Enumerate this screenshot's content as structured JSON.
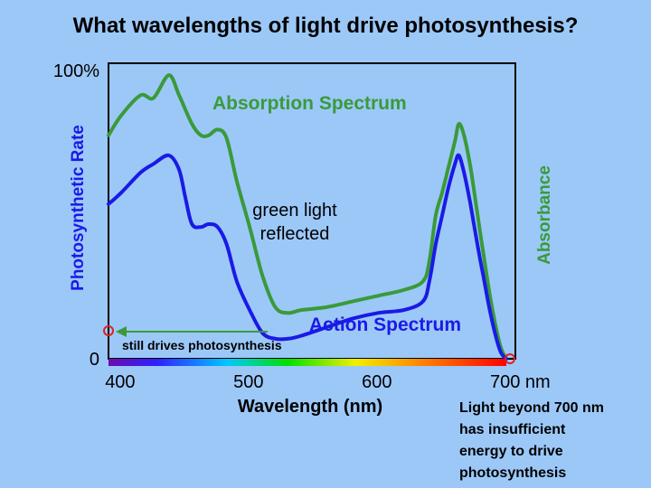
{
  "chart_data": {
    "type": "line",
    "title": "What wavelengths of light drive photosynthesis?",
    "xlabel": "Wavelength (nm)",
    "ylabel_left": "Photosynthetic Rate",
    "ylabel_right": "Absorbance",
    "x_ticks": [
      "400",
      "500",
      "600",
      "700 nm"
    ],
    "x_tick_values": [
      400,
      500,
      600,
      700
    ],
    "y_ticks": [
      "0",
      "100%"
    ],
    "y_tick_values": [
      0,
      100
    ],
    "xlim": [
      390,
      700
    ],
    "ylim": [
      0,
      100
    ],
    "grid": false,
    "series": [
      {
        "name": "Absorption Spectrum",
        "color": "#3a9a3a",
        "x": [
          390,
          400,
          415,
          425,
          437,
          445,
          455,
          462,
          468,
          475,
          482,
          490,
          500,
          510,
          520,
          530,
          540,
          560,
          580,
          600,
          620,
          635,
          640,
          645,
          650,
          655,
          660,
          663,
          667,
          672,
          677,
          682,
          688,
          695,
          700
        ],
        "y": [
          78,
          85,
          92,
          91,
          99,
          92,
          82,
          78,
          78,
          80,
          77,
          62,
          46,
          29,
          18,
          16,
          17,
          18,
          20,
          22,
          24,
          27,
          34,
          50,
          58,
          67,
          76,
          82,
          78,
          67,
          52,
          37,
          20,
          5,
          0
        ]
      },
      {
        "name": "Action Spectrum",
        "color": "#1a1ae6",
        "x": [
          390,
          400,
          415,
          425,
          437,
          445,
          450,
          455,
          462,
          468,
          475,
          482,
          490,
          500,
          510,
          520,
          530,
          540,
          560,
          580,
          600,
          620,
          635,
          640,
          645,
          650,
          655,
          660,
          663,
          667,
          672,
          677,
          682,
          688,
          695,
          700
        ],
        "y": [
          54,
          58,
          65,
          68,
          71,
          66,
          56,
          47,
          46,
          47,
          46,
          40,
          27,
          17,
          9,
          7,
          7,
          8,
          11,
          14,
          16,
          17,
          20,
          27,
          40,
          50,
          60,
          68,
          71,
          65,
          54,
          41,
          29,
          15,
          3,
          0
        ]
      }
    ],
    "annotations": {
      "green_light_line1": "green light",
      "green_light_line2": "reflected",
      "still_drives": "still drives photosynthesis",
      "note_line1": "Light beyond 700 nm",
      "note_line2": "has insufficient",
      "note_line3": "energy to  drive",
      "note_line4": "photosynthesis"
    },
    "marker_color": "#e02020"
  }
}
